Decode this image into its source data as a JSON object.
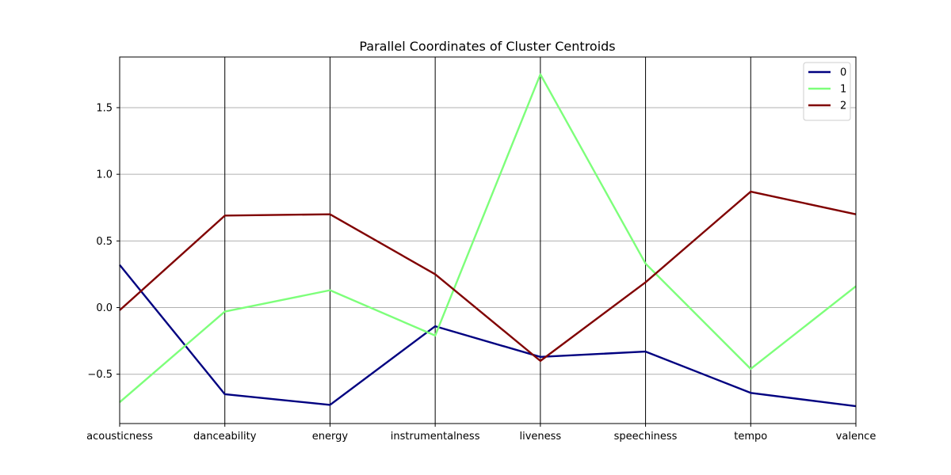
{
  "chart_data": {
    "type": "line",
    "title": "Parallel Coordinates of Cluster Centroids",
    "categories": [
      "acousticness",
      "danceability",
      "energy",
      "instrumentalness",
      "liveness",
      "speechiness",
      "tempo",
      "valence"
    ],
    "yticks": [
      "−0.5",
      "0.0",
      "0.5",
      "1.0",
      "1.5"
    ],
    "ytick_values": [
      -0.5,
      0.0,
      0.5,
      1.0,
      1.5
    ],
    "ylim": [
      -0.87,
      1.88
    ],
    "grid": true,
    "legend_placement": "upper-right",
    "series": [
      {
        "name": "0",
        "color": "#000080",
        "values": [
          0.32,
          -0.65,
          -0.73,
          -0.14,
          -0.37,
          -0.33,
          -0.64,
          -0.74
        ]
      },
      {
        "name": "1",
        "color": "#7dff7a",
        "values": [
          -0.71,
          -0.03,
          0.13,
          -0.21,
          1.75,
          0.33,
          -0.46,
          0.16
        ]
      },
      {
        "name": "2",
        "color": "#800000",
        "values": [
          -0.02,
          0.69,
          0.7,
          0.25,
          -0.4,
          0.19,
          0.87,
          0.7
        ]
      }
    ]
  }
}
